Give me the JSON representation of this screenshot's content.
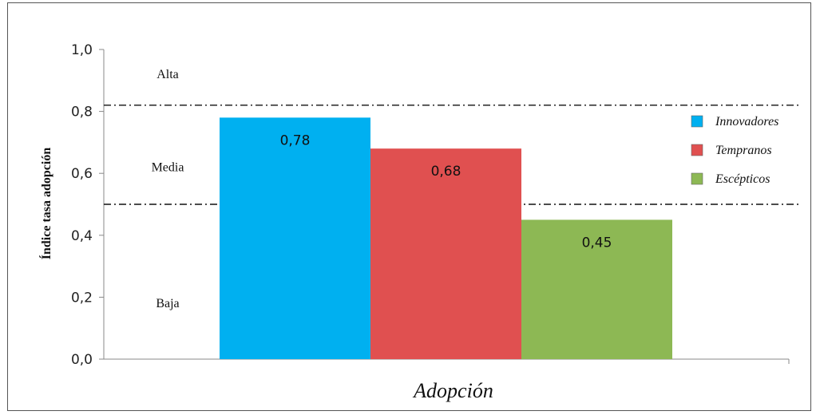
{
  "chart_data": {
    "type": "bar",
    "title": "",
    "xlabel": "Adopción",
    "ylabel": "Índice tasa adopción",
    "ylim": [
      0,
      1.0
    ],
    "yticks": [
      "0,0",
      "0,2",
      "0,4",
      "0,6",
      "0,8",
      "1,0"
    ],
    "grid": false,
    "legend_position": "right",
    "series": [
      {
        "name": "Innovadores",
        "value": 0.78,
        "label": "0,78",
        "color": "#00b0f0"
      },
      {
        "name": "Tempranos",
        "value": 0.68,
        "label": "0,68",
        "color": "#e05050"
      },
      {
        "name": "Escépticos",
        "value": 0.45,
        "label": "0,45",
        "color": "#8db854"
      }
    ],
    "thresholds": [
      0.82,
      0.5
    ],
    "zones": [
      {
        "label": "Alta",
        "value": 0.92
      },
      {
        "label": "Media",
        "value": 0.62
      },
      {
        "label": "Baja",
        "value": 0.18
      }
    ]
  }
}
